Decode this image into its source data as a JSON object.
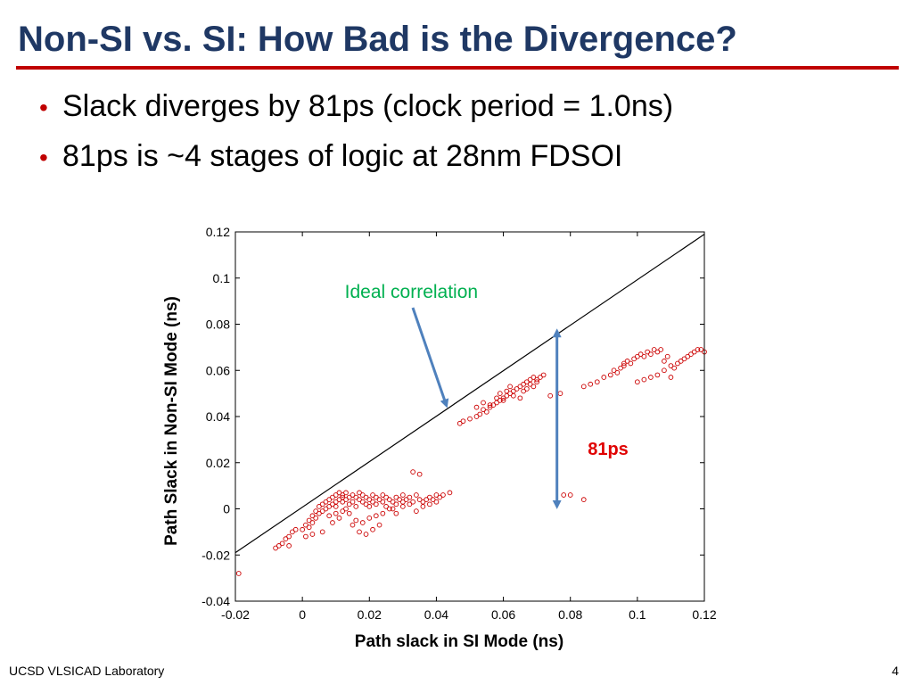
{
  "slide": {
    "title": "Non-SI vs. SI: How Bad is the Divergence?",
    "bullets": [
      "Slack diverges by 81ps (clock period = 1.0ns)",
      "81ps is ~4 stages of logic at 28nm FDSOI"
    ],
    "footer_left": "UCSD VLSICAD Laboratory",
    "page_number": "4"
  },
  "colors": {
    "title": "#1f3864",
    "rule": "#c00000",
    "points": "#cc0000",
    "arrow": "#4f81bd",
    "ideal_label": "#00b050",
    "delta_label": "#e00000"
  },
  "chart_data": {
    "type": "scatter",
    "xlabel": "Path slack in SI Mode (ns)",
    "ylabel": "Path Slack in Non-SI Mode (ns)",
    "xlim": [
      -0.02,
      0.12
    ],
    "ylim": [
      -0.04,
      0.12
    ],
    "xticks": [
      -0.02,
      0,
      0.02,
      0.04,
      0.06,
      0.08,
      0.1,
      0.12
    ],
    "yticks": [
      -0.04,
      -0.02,
      0,
      0.02,
      0.04,
      0.06,
      0.08,
      0.1,
      0.12
    ],
    "xtick_labels": [
      "-0.02",
      "0",
      "0.02",
      "0.04",
      "0.06",
      "0.08",
      "0.1",
      "0.12"
    ],
    "ytick_labels": [
      "-0.04",
      "-0.02",
      "0",
      "0.02",
      "0.04",
      "0.06",
      "0.08",
      "0.1",
      "0.12"
    ],
    "grid": false,
    "ideal_line": {
      "from": [
        -0.02,
        -0.019
      ],
      "to": [
        0.12,
        0.119
      ]
    },
    "annotations": [
      {
        "text": "Ideal correlation",
        "arrow_from": [
          0.032,
          0.088
        ],
        "arrow_to": [
          0.043,
          0.044
        ]
      },
      {
        "text": "81ps",
        "arrow_x": 0.076,
        "arrow_from": [
          0.076,
          0.077
        ],
        "arrow_to": [
          0.076,
          0.001
        ]
      }
    ],
    "series": [
      {
        "points": [
          [
            -0.019,
            -0.028
          ],
          [
            -0.008,
            -0.017
          ],
          [
            -0.007,
            -0.016
          ],
          [
            -0.006,
            -0.015
          ],
          [
            -0.005,
            -0.013
          ],
          [
            -0.004,
            -0.012
          ],
          [
            -0.003,
            -0.01
          ],
          [
            -0.002,
            -0.009
          ],
          [
            0.0,
            -0.009
          ],
          [
            0.001,
            -0.007
          ],
          [
            0.002,
            -0.008
          ],
          [
            0.002,
            -0.005
          ],
          [
            0.003,
            -0.006
          ],
          [
            0.003,
            -0.003
          ],
          [
            0.004,
            -0.004
          ],
          [
            0.004,
            -0.001
          ],
          [
            0.005,
            -0.002
          ],
          [
            0.005,
            0.001
          ],
          [
            0.006,
            -0.001
          ],
          [
            0.006,
            0.002
          ],
          [
            0.007,
            0.0
          ],
          [
            0.007,
            0.003
          ],
          [
            0.008,
            0.001
          ],
          [
            0.008,
            0.004
          ],
          [
            0.009,
            0.002
          ],
          [
            0.009,
            0.005
          ],
          [
            0.01,
            0.003
          ],
          [
            0.01,
            0.006
          ],
          [
            0.011,
            0.004
          ],
          [
            0.011,
            0.007
          ],
          [
            0.012,
            0.005
          ],
          [
            0.012,
            0.006
          ],
          [
            0.013,
            0.004
          ],
          [
            0.013,
            0.007
          ],
          [
            0.014,
            0.005
          ],
          [
            0.014,
            0.002
          ],
          [
            0.015,
            0.006
          ],
          [
            0.015,
            0.003
          ],
          [
            0.016,
            0.005
          ],
          [
            0.016,
            0.001
          ],
          [
            0.017,
            0.004
          ],
          [
            0.017,
            0.007
          ],
          [
            0.018,
            0.003
          ],
          [
            0.018,
            0.006
          ],
          [
            0.019,
            0.002
          ],
          [
            0.019,
            0.005
          ],
          [
            0.02,
            0.004
          ],
          [
            0.02,
            0.001
          ],
          [
            0.021,
            0.003
          ],
          [
            0.021,
            0.006
          ],
          [
            0.022,
            0.002
          ],
          [
            0.022,
            0.005
          ],
          [
            0.023,
            0.004
          ],
          [
            0.024,
            0.003
          ],
          [
            0.024,
            0.006
          ],
          [
            0.025,
            0.005
          ],
          [
            0.026,
            0.004
          ],
          [
            0.026,
            0.0
          ],
          [
            0.027,
            0.003
          ],
          [
            0.028,
            0.005
          ],
          [
            0.028,
            0.002
          ],
          [
            0.029,
            0.004
          ],
          [
            0.03,
            0.003
          ],
          [
            0.03,
            0.006
          ],
          [
            0.031,
            0.004
          ],
          [
            0.032,
            0.005
          ],
          [
            0.033,
            0.003
          ],
          [
            0.034,
            0.006
          ],
          [
            0.035,
            0.004
          ],
          [
            0.036,
            0.003
          ],
          [
            0.037,
            0.004
          ],
          [
            0.038,
            0.005
          ],
          [
            0.039,
            0.004
          ],
          [
            0.04,
            0.006
          ],
          [
            0.041,
            0.005
          ],
          [
            0.042,
            0.006
          ],
          [
            0.044,
            0.007
          ],
          [
            0.008,
            -0.003
          ],
          [
            0.01,
            -0.002
          ],
          [
            0.012,
            -0.001
          ],
          [
            0.014,
            -0.002
          ],
          [
            0.016,
            -0.005
          ],
          [
            0.018,
            -0.006
          ],
          [
            0.02,
            -0.004
          ],
          [
            0.022,
            -0.003
          ],
          [
            0.024,
            -0.002
          ],
          [
            0.013,
            0.0
          ],
          [
            0.015,
            -0.007
          ],
          [
            0.017,
            -0.01
          ],
          [
            0.019,
            -0.011
          ],
          [
            0.021,
            -0.009
          ],
          [
            0.023,
            -0.007
          ],
          [
            0.011,
            -0.004
          ],
          [
            0.009,
            -0.006
          ],
          [
            0.028,
            -0.002
          ],
          [
            0.03,
            0.001
          ],
          [
            0.032,
            0.002
          ],
          [
            0.034,
            -0.001
          ],
          [
            0.01,
            0.001
          ],
          [
            0.012,
            0.003
          ],
          [
            0.036,
            0.001
          ],
          [
            0.038,
            0.002
          ],
          [
            0.04,
            0.003
          ],
          [
            0.027,
            0.0
          ],
          [
            0.025,
            0.001
          ],
          [
            0.003,
            -0.011
          ],
          [
            0.001,
            -0.012
          ],
          [
            -0.004,
            -0.016
          ],
          [
            0.006,
            -0.01
          ],
          [
            0.033,
            0.016
          ],
          [
            0.035,
            0.015
          ],
          [
            0.047,
            0.037
          ],
          [
            0.048,
            0.038
          ],
          [
            0.05,
            0.039
          ],
          [
            0.052,
            0.04
          ],
          [
            0.053,
            0.041
          ],
          [
            0.054,
            0.043
          ],
          [
            0.055,
            0.042
          ],
          [
            0.056,
            0.044
          ],
          [
            0.057,
            0.045
          ],
          [
            0.058,
            0.046
          ],
          [
            0.059,
            0.047
          ],
          [
            0.06,
            0.048
          ],
          [
            0.061,
            0.049
          ],
          [
            0.062,
            0.05
          ],
          [
            0.063,
            0.051
          ],
          [
            0.064,
            0.052
          ],
          [
            0.065,
            0.053
          ],
          [
            0.066,
            0.054
          ],
          [
            0.067,
            0.055
          ],
          [
            0.068,
            0.056
          ],
          [
            0.069,
            0.057
          ],
          [
            0.07,
            0.056
          ],
          [
            0.071,
            0.057
          ],
          [
            0.072,
            0.058
          ],
          [
            0.061,
            0.051
          ],
          [
            0.063,
            0.049
          ],
          [
            0.065,
            0.048
          ],
          [
            0.067,
            0.052
          ],
          [
            0.069,
            0.053
          ],
          [
            0.059,
            0.05
          ],
          [
            0.062,
            0.053
          ],
          [
            0.066,
            0.051
          ],
          [
            0.068,
            0.054
          ],
          [
            0.07,
            0.055
          ],
          [
            0.052,
            0.044
          ],
          [
            0.054,
            0.046
          ],
          [
            0.056,
            0.045
          ],
          [
            0.058,
            0.048
          ],
          [
            0.06,
            0.047
          ],
          [
            0.084,
            0.053
          ],
          [
            0.086,
            0.054
          ],
          [
            0.088,
            0.055
          ],
          [
            0.09,
            0.057
          ],
          [
            0.092,
            0.058
          ],
          [
            0.093,
            0.06
          ],
          [
            0.094,
            0.059
          ],
          [
            0.095,
            0.061
          ],
          [
            0.096,
            0.063
          ],
          [
            0.097,
            0.064
          ],
          [
            0.098,
            0.063
          ],
          [
            0.099,
            0.065
          ],
          [
            0.1,
            0.066
          ],
          [
            0.101,
            0.067
          ],
          [
            0.102,
            0.066
          ],
          [
            0.103,
            0.068
          ],
          [
            0.104,
            0.067
          ],
          [
            0.105,
            0.069
          ],
          [
            0.106,
            0.068
          ],
          [
            0.107,
            0.069
          ],
          [
            0.1,
            0.055
          ],
          [
            0.102,
            0.056
          ],
          [
            0.104,
            0.057
          ],
          [
            0.106,
            0.058
          ],
          [
            0.108,
            0.06
          ],
          [
            0.109,
            0.066
          ],
          [
            0.11,
            0.062
          ],
          [
            0.111,
            0.061
          ],
          [
            0.112,
            0.063
          ],
          [
            0.113,
            0.064
          ],
          [
            0.114,
            0.065
          ],
          [
            0.115,
            0.066
          ],
          [
            0.116,
            0.067
          ],
          [
            0.117,
            0.068
          ],
          [
            0.118,
            0.069
          ],
          [
            0.119,
            0.069
          ],
          [
            0.12,
            0.068
          ],
          [
            0.108,
            0.064
          ],
          [
            0.11,
            0.057
          ],
          [
            0.096,
            0.062
          ],
          [
            0.078,
            0.006
          ],
          [
            0.08,
            0.006
          ],
          [
            0.084,
            0.004
          ],
          [
            0.074,
            0.049
          ],
          [
            0.077,
            0.05
          ]
        ]
      }
    ]
  }
}
